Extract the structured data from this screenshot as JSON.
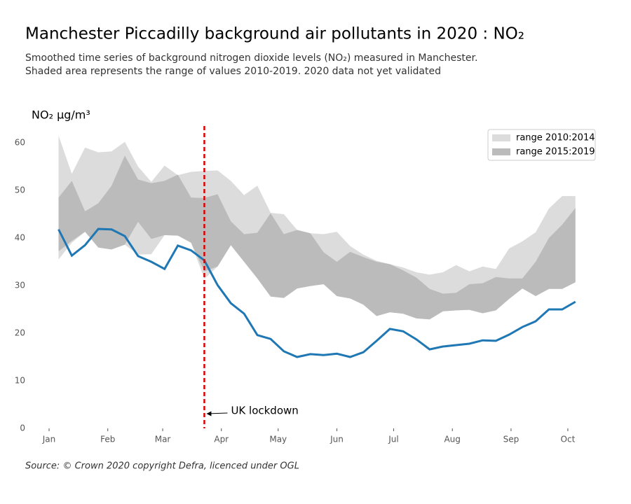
{
  "chart_data": {
    "type": "range-line",
    "title": "Manchester Piccadilly background air pollutants in 2020 : NO₂",
    "subtitle": [
      "Smoothed time series of background nitrogen dioxide levels (NO₂) measured in Manchester.",
      "Shaded area represents the range of values 2010-2019. 2020 data not yet validated"
    ],
    "y_label": "NO₂ µg/m³",
    "source": "Source: © Crown 2020 copyright Defra,  licenced under OGL",
    "x": [
      5,
      12,
      19,
      26,
      33,
      40,
      47,
      54,
      61,
      68,
      75,
      82,
      89,
      96,
      103,
      110,
      117,
      124,
      131,
      138,
      145,
      152,
      159,
      166,
      173,
      180,
      187,
      194,
      201,
      208,
      215,
      222,
      229,
      236,
      243,
      250,
      257,
      264,
      271,
      278
    ],
    "xlim": [
      -2.6,
      284.4
    ],
    "xticks": [
      {
        "value": 0,
        "label": "Jan"
      },
      {
        "value": 31,
        "label": "Feb"
      },
      {
        "value": 60,
        "label": "Mar"
      },
      {
        "value": 91,
        "label": "Apr"
      },
      {
        "value": 121,
        "label": "May"
      },
      {
        "value": 152,
        "label": "Jun"
      },
      {
        "value": 182,
        "label": "Jul"
      },
      {
        "value": 213,
        "label": "Aug"
      },
      {
        "value": 244,
        "label": "Sep"
      },
      {
        "value": 274,
        "label": "Oct"
      }
    ],
    "ylim": [
      0,
      63
    ],
    "yticks": [
      0,
      10,
      20,
      30,
      40,
      50,
      60
    ],
    "ranges": [
      {
        "name": "range 2010:2014",
        "color": "#dcdcdc",
        "upper": [
          61.5,
          53.5,
          59,
          58,
          58.2,
          60.2,
          55,
          51.8,
          55.2,
          53.2,
          53.9,
          54.1,
          54.2,
          52,
          49,
          51,
          45.3,
          45,
          41.7,
          41,
          40.8,
          41.3,
          38.3,
          36.5,
          35.2,
          34.5,
          33.8,
          32.8,
          32.3,
          32.8,
          34.3,
          33,
          34,
          33.5,
          37.8,
          39.3,
          41.2,
          46.2,
          48.8,
          48.8
        ],
        "lower": [
          35.5,
          39,
          41.3,
          38,
          37.6,
          38.6,
          36.5,
          36.6,
          40.6,
          40.5,
          39,
          31.4,
          34,
          38.5,
          35,
          31.5,
          27.7,
          27.4,
          29.4,
          29.9,
          30.3,
          27.8,
          27.3,
          26,
          23.6,
          24.4,
          24.1,
          23.1,
          22.9,
          24.6,
          24.8,
          24.9,
          24.2,
          24.8,
          27.2,
          29.4,
          27.8,
          29.3,
          29.3,
          30.7
        ]
      },
      {
        "name": "range 2015:2019",
        "color": "#bbbbbb",
        "upper": [
          48.5,
          52,
          45.6,
          47.3,
          51,
          57.3,
          52.3,
          51.5,
          52,
          53.3,
          48.5,
          48.4,
          49.2,
          43.5,
          40.8,
          41.1,
          45.2,
          40.8,
          41.7,
          41,
          37,
          35,
          37.1,
          36,
          35,
          34.5,
          33.2,
          31.7,
          29.3,
          28.3,
          28.5,
          30.3,
          30.5,
          31.8,
          31.5,
          31.5,
          35,
          40,
          42.8,
          46.3
        ],
        "lower": [
          37.2,
          39.4,
          41.3,
          38,
          37.6,
          38.6,
          43.4,
          39.8,
          40.6,
          40.5,
          39,
          33,
          34,
          38.5,
          35,
          31.5,
          27.7,
          27.4,
          29.4,
          29.9,
          30.3,
          27.8,
          27.3,
          26,
          23.6,
          24.4,
          24.1,
          23.1,
          22.9,
          24.6,
          24.8,
          24.9,
          24.2,
          24.8,
          27.2,
          29.4,
          27.8,
          29.3,
          29.3,
          30.7
        ]
      }
    ],
    "series": [
      {
        "color": "#1f77b4",
        "values": [
          41.8,
          36.3,
          38.5,
          41.9,
          41.8,
          40.4,
          36.2,
          35,
          33.5,
          38.4,
          37.4,
          35.3,
          30.1,
          26.3,
          24.1,
          19.6,
          18.8,
          16.2,
          15,
          15.6,
          15.4,
          15.7,
          15,
          16,
          18.4,
          20.9,
          20.4,
          18.7,
          16.6,
          17.2,
          17.5,
          17.8,
          18.5,
          18.4,
          19.7,
          21.3,
          22.5,
          25,
          25,
          26.6
        ]
      }
    ],
    "annotations": [
      {
        "text": "UK lockdown",
        "x": 82,
        "color": "#dd0000"
      }
    ],
    "legend": "upper right"
  }
}
